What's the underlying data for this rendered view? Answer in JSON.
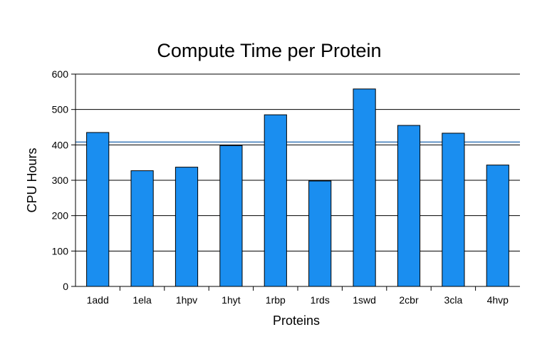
{
  "chart_data": {
    "type": "bar",
    "title": "Compute Time per Protein",
    "xlabel": "Proteins",
    "ylabel": "CPU Hours",
    "categories": [
      "1add",
      "1ela",
      "1hpv",
      "1hyt",
      "1rbp",
      "1rds",
      "1swd",
      "2cbr",
      "3cla",
      "4hvp"
    ],
    "values": [
      435,
      327,
      337,
      398,
      485,
      298,
      558,
      455,
      433,
      343
    ],
    "ylim": [
      0,
      600
    ],
    "yticks": [
      0,
      100,
      200,
      300,
      400,
      500,
      600
    ],
    "reference_line": 408,
    "grid": true,
    "legend": "none",
    "colors": {
      "bar": "#1a8ef0",
      "bar_stroke": "#000000",
      "reference_line": "#3a78b8",
      "grid": "#000000"
    }
  }
}
